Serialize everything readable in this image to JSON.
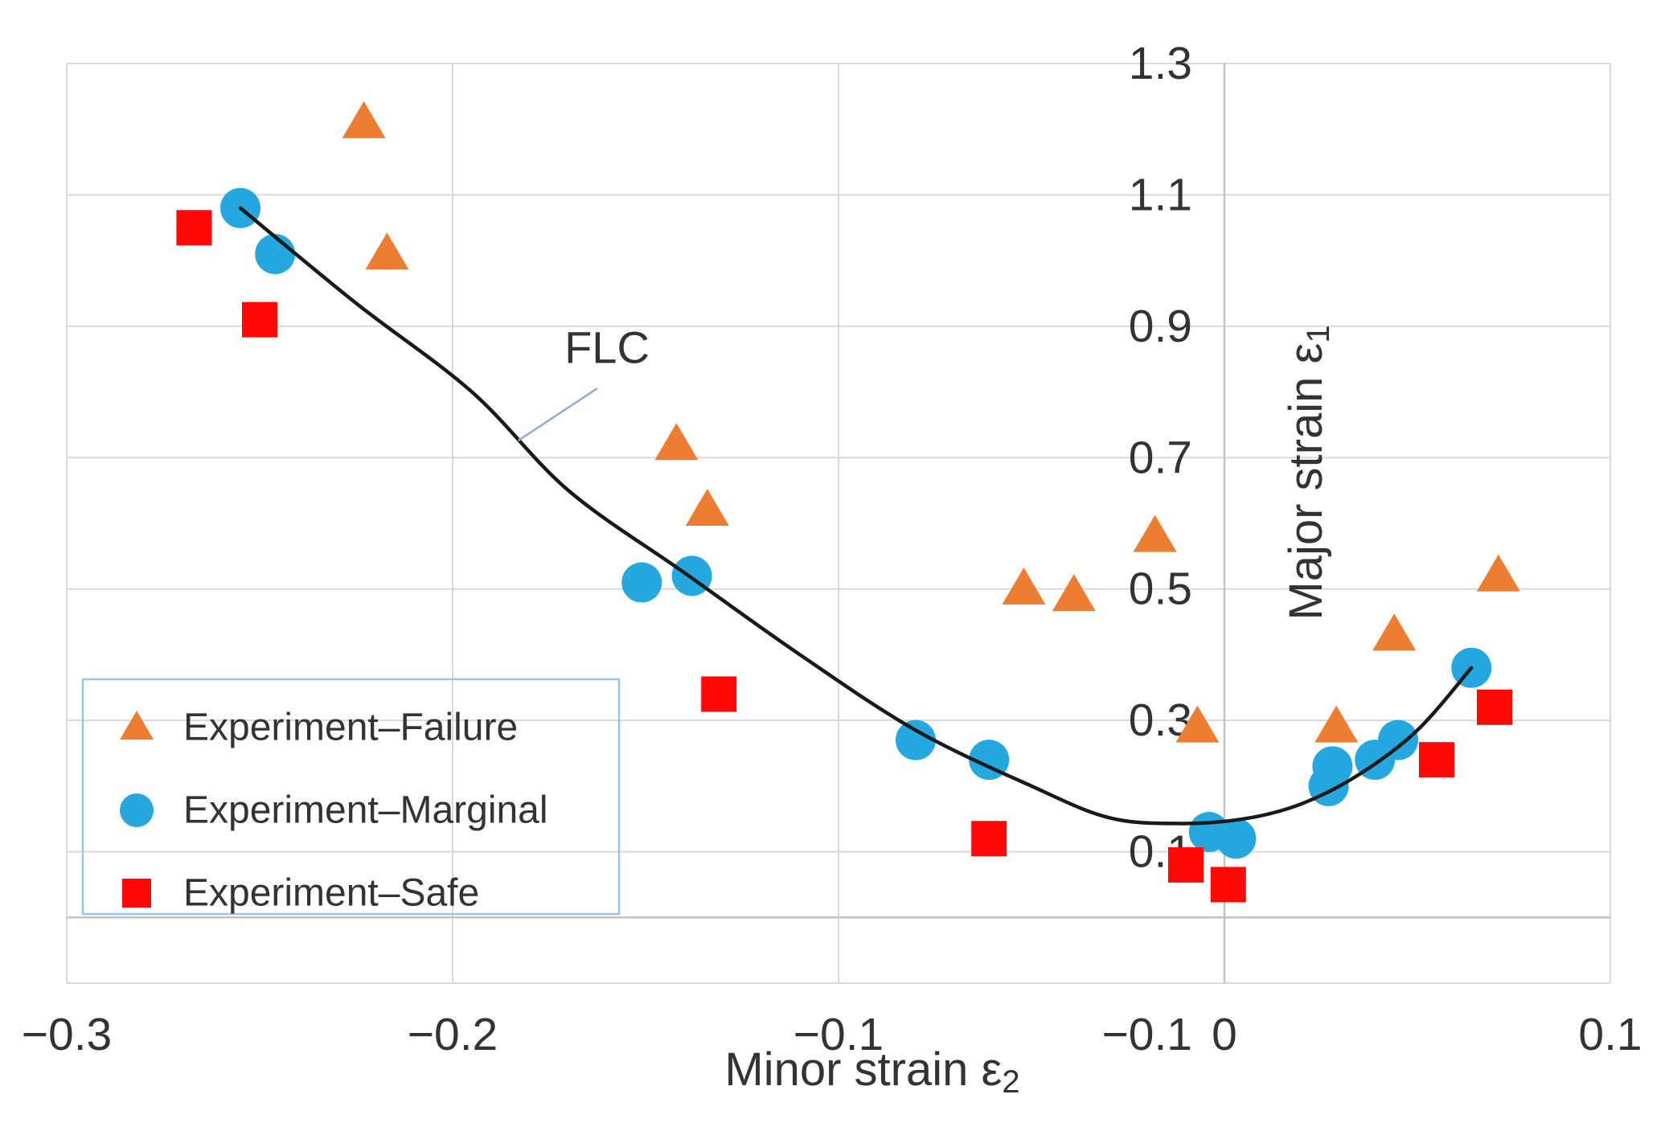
{
  "chart_data": {
    "type": "scatter",
    "title": "",
    "xlabel": {
      "main": "Minor strain ε",
      "sub": "2"
    },
    "ylabel": {
      "main": "Major strain ε",
      "sub": "1"
    },
    "xlim": [
      -0.3,
      0.1
    ],
    "ylim": [
      -0.1,
      1.3
    ],
    "grid": true,
    "legend_position": "inside-bottom-left",
    "x_ticks": [
      {
        "value": -0.3,
        "label": "−0.3"
      },
      {
        "value": -0.2,
        "label": "−0.2"
      },
      {
        "value": -0.1,
        "label": "−0.1"
      },
      {
        "value": 0,
        "label": "0"
      },
      {
        "value": 0.1,
        "label": "0.1"
      }
    ],
    "y_ticks": [
      {
        "value": 1.3,
        "label": "1.3"
      },
      {
        "value": 1.1,
        "label": "1.1"
      },
      {
        "value": 0.9,
        "label": "0.9"
      },
      {
        "value": 0.7,
        "label": "0.7"
      },
      {
        "value": 0.5,
        "label": "0.5"
      },
      {
        "value": 0.3,
        "label": "0.3"
      },
      {
        "value": 0.1,
        "label": "0.1"
      },
      {
        "value": -0.1,
        "label": "−0.1"
      }
    ],
    "axis_cross": {
      "x": 0,
      "y": 0
    },
    "series": [
      {
        "name": "Experiment–Failure",
        "marker": "triangle",
        "color": "#ED7D31",
        "points": [
          [
            -0.223,
            1.21
          ],
          [
            -0.217,
            1.01
          ],
          [
            -0.142,
            0.72
          ],
          [
            -0.134,
            0.62
          ],
          [
            -0.052,
            0.5
          ],
          [
            -0.039,
            0.49
          ],
          [
            -0.018,
            0.58
          ],
          [
            -0.007,
            0.29
          ],
          [
            0.029,
            0.29
          ],
          [
            0.044,
            0.43
          ],
          [
            0.071,
            0.52
          ]
        ]
      },
      {
        "name": "Experiment–Marginal",
        "marker": "circle",
        "color": "#25A8E0",
        "points": [
          [
            -0.255,
            1.08
          ],
          [
            -0.246,
            1.01
          ],
          [
            -0.151,
            0.51
          ],
          [
            -0.138,
            0.52
          ],
          [
            -0.08,
            0.27
          ],
          [
            -0.061,
            0.24
          ],
          [
            -0.004,
            0.13
          ],
          [
            0.003,
            0.12
          ],
          [
            0.027,
            0.2
          ],
          [
            0.028,
            0.23
          ],
          [
            0.039,
            0.24
          ],
          [
            0.045,
            0.27
          ],
          [
            0.064,
            0.38
          ]
        ]
      },
      {
        "name": "Experiment–Safe",
        "marker": "square",
        "color": "#FE0808",
        "points": [
          [
            -0.267,
            1.05
          ],
          [
            -0.25,
            0.91
          ],
          [
            -0.131,
            0.34
          ],
          [
            -0.061,
            0.12
          ],
          [
            -0.01,
            0.08
          ],
          [
            0.001,
            0.05
          ],
          [
            0.055,
            0.24
          ],
          [
            0.07,
            0.32
          ]
        ]
      }
    ],
    "flc_curve": {
      "name": "FLC",
      "color": "#1A1A1A",
      "points": [
        [
          -0.255,
          1.08
        ],
        [
          -0.225,
          0.935
        ],
        [
          -0.195,
          0.8
        ],
        [
          -0.17,
          0.65
        ],
        [
          -0.14,
          0.525
        ],
        [
          -0.11,
          0.4
        ],
        [
          -0.08,
          0.285
        ],
        [
          -0.05,
          0.2
        ],
        [
          -0.03,
          0.152
        ],
        [
          -0.012,
          0.143
        ],
        [
          0.005,
          0.15
        ],
        [
          0.02,
          0.173
        ],
        [
          0.035,
          0.218
        ],
        [
          0.05,
          0.285
        ],
        [
          0.064,
          0.38
        ]
      ]
    },
    "annotation": {
      "text": "FLC",
      "anchor": [
        -0.16,
        0.868
      ],
      "leader_from": [
        -0.183,
        0.726
      ],
      "leader_to": [
        -0.1625,
        0.8055
      ]
    }
  },
  "colors": {
    "background": "#FFFFFF",
    "grid": "#D9D9D9",
    "axis_line": "#C3C3C3",
    "text": "#333333",
    "legend_border": "#9DC3E6",
    "leader_line": "#8FAADC",
    "failure": "#ED7D31",
    "marginal": "#25A8E0",
    "safe": "#FE0808",
    "curve": "#1A1A1A"
  }
}
